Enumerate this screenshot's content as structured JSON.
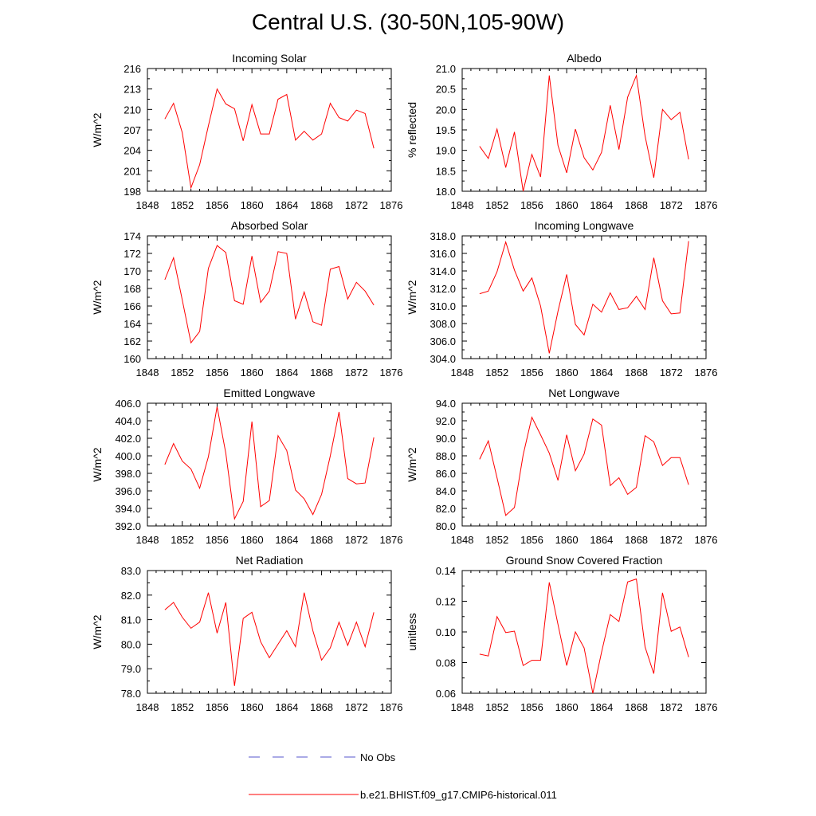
{
  "title": "Central U.S. (30-50N,105-90W)",
  "legend": {
    "obs_label": "No Obs",
    "obs_color": "#5555cc",
    "model_label": "b.e21.BHIST.f09_g17.CMIP6-historical.011",
    "model_color": "#ff0000"
  },
  "chart_data": [
    {
      "type": "line",
      "title": "Incoming Solar",
      "ylabel": "W/m^2",
      "xlim": [
        1848,
        1876
      ],
      "ylim": [
        198,
        216
      ],
      "x_ticks": [
        "1848",
        "1852",
        "1856",
        "1860",
        "1864",
        "1868",
        "1872",
        "1876"
      ],
      "y_ticks": [
        "198",
        "201",
        "204",
        "207",
        "210",
        "213",
        "216"
      ],
      "series": [
        {
          "name": "b.e21.BHIST.f09_g17.CMIP6-historical.011",
          "x": [
            1850,
            1851,
            1852,
            1853,
            1854,
            1855,
            1856,
            1857,
            1858,
            1859,
            1860,
            1861,
            1862,
            1863,
            1864,
            1865,
            1866,
            1867,
            1868,
            1869,
            1870,
            1871,
            1872,
            1873,
            1874
          ],
          "values": [
            208.6,
            210.9,
            206.6,
            198.5,
            201.9,
            207.6,
            213.0,
            210.8,
            210.1,
            205.4,
            210.7,
            206.4,
            206.4,
            211.5,
            212.2,
            205.5,
            206.8,
            205.5,
            206.4,
            210.9,
            208.8,
            208.3,
            209.9,
            209.4,
            204.3
          ]
        }
      ]
    },
    {
      "type": "line",
      "title": "Albedo",
      "ylabel": "% reflected",
      "xlim": [
        1848,
        1876
      ],
      "ylim": [
        18.0,
        21.0
      ],
      "x_ticks": [
        "1848",
        "1852",
        "1856",
        "1860",
        "1864",
        "1868",
        "1872",
        "1876"
      ],
      "y_ticks": [
        "18.0",
        "18.5",
        "19.0",
        "19.5",
        "20.0",
        "20.5",
        "21.0"
      ],
      "series": [
        {
          "name": "b.e21.BHIST.f09_g17.CMIP6-historical.011",
          "x": [
            1850,
            1851,
            1852,
            1853,
            1854,
            1855,
            1856,
            1857,
            1858,
            1859,
            1860,
            1861,
            1862,
            1863,
            1864,
            1865,
            1866,
            1867,
            1868,
            1869,
            1870,
            1871,
            1872,
            1873,
            1874
          ],
          "values": [
            19.1,
            18.8,
            19.52,
            18.58,
            19.45,
            18.0,
            18.9,
            18.35,
            20.83,
            19.12,
            18.45,
            19.52,
            18.82,
            18.52,
            18.95,
            20.1,
            19.02,
            20.3,
            20.83,
            19.35,
            18.33,
            20.0,
            19.75,
            19.93,
            18.78
          ]
        }
      ]
    },
    {
      "type": "line",
      "title": "Absorbed Solar",
      "ylabel": "W/m^2",
      "xlim": [
        1848,
        1876
      ],
      "ylim": [
        160,
        174
      ],
      "x_ticks": [
        "1848",
        "1852",
        "1856",
        "1860",
        "1864",
        "1868",
        "1872",
        "1876"
      ],
      "y_ticks": [
        "160",
        "162",
        "164",
        "166",
        "168",
        "170",
        "172",
        "174"
      ],
      "series": [
        {
          "name": "b.e21.BHIST.f09_g17.CMIP6-historical.011",
          "x": [
            1850,
            1851,
            1852,
            1853,
            1854,
            1855,
            1856,
            1857,
            1858,
            1859,
            1860,
            1861,
            1862,
            1863,
            1864,
            1865,
            1866,
            1867,
            1868,
            1869,
            1870,
            1871,
            1872,
            1873,
            1874
          ],
          "values": [
            169.0,
            171.5,
            166.7,
            161.8,
            163.1,
            170.3,
            172.9,
            172.1,
            166.6,
            166.2,
            171.7,
            166.4,
            167.7,
            172.2,
            172.0,
            164.5,
            167.6,
            164.2,
            163.8,
            170.2,
            170.5,
            166.8,
            168.7,
            167.7,
            166.1
          ]
        }
      ]
    },
    {
      "type": "line",
      "title": "Incoming Longwave",
      "ylabel": "W/m^2",
      "xlim": [
        1848,
        1876
      ],
      "ylim": [
        304.0,
        318.0
      ],
      "x_ticks": [
        "1848",
        "1852",
        "1856",
        "1860",
        "1864",
        "1868",
        "1872",
        "1876"
      ],
      "y_ticks": [
        "304.0",
        "306.0",
        "308.0",
        "310.0",
        "312.0",
        "314.0",
        "316.0",
        "318.0"
      ],
      "series": [
        {
          "name": "b.e21.BHIST.f09_g17.CMIP6-historical.011",
          "x": [
            1850,
            1851,
            1852,
            1853,
            1854,
            1855,
            1856,
            1857,
            1858,
            1859,
            1860,
            1861,
            1862,
            1863,
            1864,
            1865,
            1866,
            1867,
            1868,
            1869,
            1870,
            1871,
            1872,
            1873,
            1874
          ],
          "values": [
            311.4,
            311.7,
            313.9,
            317.3,
            314.1,
            311.7,
            313.2,
            310.0,
            304.6,
            309.4,
            313.6,
            307.9,
            306.7,
            310.2,
            309.3,
            311.5,
            309.6,
            309.8,
            311.1,
            309.6,
            315.5,
            310.6,
            309.1,
            309.2,
            317.4
          ]
        }
      ]
    },
    {
      "type": "line",
      "title": "Emitted Longwave",
      "ylabel": "W/m^2",
      "xlim": [
        1848,
        1876
      ],
      "ylim": [
        392.0,
        406.0
      ],
      "x_ticks": [
        "1848",
        "1852",
        "1856",
        "1860",
        "1864",
        "1868",
        "1872",
        "1876"
      ],
      "y_ticks": [
        "392.0",
        "394.0",
        "396.0",
        "398.0",
        "400.0",
        "402.0",
        "404.0",
        "406.0"
      ],
      "series": [
        {
          "name": "b.e21.BHIST.f09_g17.CMIP6-historical.011",
          "x": [
            1850,
            1851,
            1852,
            1853,
            1854,
            1855,
            1856,
            1857,
            1858,
            1859,
            1860,
            1861,
            1862,
            1863,
            1864,
            1865,
            1866,
            1867,
            1868,
            1869,
            1870,
            1871,
            1872,
            1873,
            1874
          ],
          "values": [
            399.0,
            401.4,
            399.4,
            398.5,
            396.3,
            399.9,
            405.6,
            400.3,
            392.8,
            394.8,
            403.9,
            394.2,
            394.9,
            402.3,
            400.6,
            396.1,
            395.1,
            393.3,
            395.6,
            400.0,
            405.0,
            397.4,
            396.8,
            396.9,
            402.1
          ]
        }
      ]
    },
    {
      "type": "line",
      "title": "Net Longwave",
      "ylabel": "W/m^2",
      "xlim": [
        1848,
        1876
      ],
      "ylim": [
        80.0,
        94.0
      ],
      "x_ticks": [
        "1848",
        "1852",
        "1856",
        "1860",
        "1864",
        "1868",
        "1872",
        "1876"
      ],
      "y_ticks": [
        "80.0",
        "82.0",
        "84.0",
        "86.0",
        "88.0",
        "90.0",
        "92.0",
        "94.0"
      ],
      "series": [
        {
          "name": "b.e21.BHIST.f09_g17.CMIP6-historical.011",
          "x": [
            1850,
            1851,
            1852,
            1853,
            1854,
            1855,
            1856,
            1857,
            1858,
            1859,
            1860,
            1861,
            1862,
            1863,
            1864,
            1865,
            1866,
            1867,
            1868,
            1869,
            1870,
            1871,
            1872,
            1873,
            1874
          ],
          "values": [
            87.6,
            89.7,
            85.5,
            81.2,
            82.1,
            88.1,
            92.4,
            90.4,
            88.3,
            85.2,
            90.4,
            86.3,
            88.2,
            92.2,
            91.5,
            84.6,
            85.5,
            83.6,
            84.4,
            90.3,
            89.6,
            86.9,
            87.8,
            87.8,
            84.7
          ]
        }
      ]
    },
    {
      "type": "line",
      "title": "Net Radiation",
      "ylabel": "W/m^2",
      "xlim": [
        1848,
        1876
      ],
      "ylim": [
        78.0,
        83.0
      ],
      "x_ticks": [
        "1848",
        "1852",
        "1856",
        "1860",
        "1864",
        "1868",
        "1872",
        "1876"
      ],
      "y_ticks": [
        "78.0",
        "79.0",
        "80.0",
        "81.0",
        "82.0",
        "83.0"
      ],
      "series": [
        {
          "name": "b.e21.BHIST.f09_g17.CMIP6-historical.011",
          "x": [
            1850,
            1851,
            1852,
            1853,
            1854,
            1855,
            1856,
            1857,
            1858,
            1859,
            1860,
            1861,
            1862,
            1863,
            1864,
            1865,
            1866,
            1867,
            1868,
            1869,
            1870,
            1871,
            1872,
            1873,
            1874
          ],
          "values": [
            81.4,
            81.7,
            81.1,
            80.65,
            80.9,
            82.1,
            80.45,
            81.7,
            78.3,
            81.05,
            81.3,
            80.1,
            79.45,
            80.0,
            80.55,
            79.9,
            82.1,
            80.55,
            79.35,
            79.85,
            80.9,
            79.95,
            80.9,
            79.9,
            81.3
          ]
        }
      ]
    },
    {
      "type": "line",
      "title": "Ground Snow Covered Fraction",
      "ylabel": "unitless",
      "xlim": [
        1848,
        1876
      ],
      "ylim": [
        0.06,
        0.14
      ],
      "x_ticks": [
        "1848",
        "1852",
        "1856",
        "1860",
        "1864",
        "1868",
        "1872",
        "1876"
      ],
      "y_ticks": [
        "0.06",
        "0.08",
        "0.10",
        "0.12",
        "0.14"
      ],
      "series": [
        {
          "name": "b.e21.BHIST.f09_g17.CMIP6-historical.011",
          "x": [
            1850,
            1851,
            1852,
            1853,
            1854,
            1855,
            1856,
            1857,
            1858,
            1859,
            1860,
            1861,
            1862,
            1863,
            1864,
            1865,
            1866,
            1867,
            1868,
            1869,
            1870,
            1871,
            1872,
            1873,
            1874
          ],
          "values": [
            0.0855,
            0.0843,
            0.11,
            0.0996,
            0.1005,
            0.0781,
            0.0815,
            0.0815,
            0.1323,
            0.1049,
            0.0781,
            0.1,
            0.0896,
            0.06,
            0.0867,
            0.1113,
            0.1068,
            0.1326,
            0.1345,
            0.0902,
            0.0728,
            0.1255,
            0.1004,
            0.1032,
            0.0836
          ]
        }
      ]
    }
  ]
}
